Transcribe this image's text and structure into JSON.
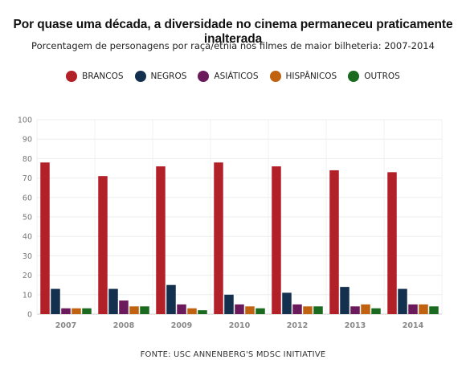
{
  "title": "Por quase uma década, a diversidade no cinema permaneceu praticamente inalterada",
  "subtitle": "Porcentagem de personagens por raça/etnia nos filmes de maior bilheteria: 2007-2014",
  "footer": "FONTE: USC ANNENBERG'S MDSC INITIATIVE",
  "chart_data": {
    "type": "bar",
    "categories": [
      "2007",
      "2008",
      "2009",
      "2010",
      "2012",
      "2013",
      "2014"
    ],
    "series": [
      {
        "name": "BRANCOS",
        "color": "#b22028",
        "values": [
          78,
          71,
          76,
          78,
          76,
          74,
          73
        ]
      },
      {
        "name": "NEGROS",
        "color": "#14304f",
        "values": [
          13,
          13,
          15,
          10,
          11,
          14,
          13
        ]
      },
      {
        "name": "ASIÁTICOS",
        "color": "#6b1a5c",
        "values": [
          3,
          7,
          5,
          5,
          5,
          4,
          5
        ]
      },
      {
        "name": "HISPÂNICOS",
        "color": "#c0620f",
        "values": [
          3,
          4,
          3,
          4,
          4,
          5,
          5
        ]
      },
      {
        "name": "OUTROS",
        "color": "#1a6b1f",
        "values": [
          3,
          4,
          2,
          3,
          4,
          3,
          4
        ]
      }
    ],
    "yticks": [
      "0",
      "10",
      "20",
      "30",
      "40",
      "50",
      "60",
      "70",
      "80",
      "90",
      "100"
    ],
    "ylim": [
      0,
      100
    ],
    "grid": true,
    "legend_position": "top-center"
  }
}
